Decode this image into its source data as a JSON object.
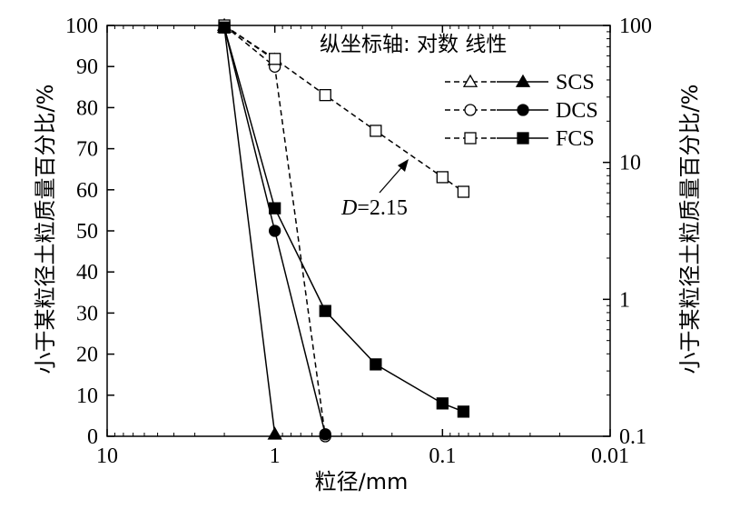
{
  "chart_data": {
    "type": "line",
    "x_axis": {
      "label": "粒径/mm",
      "scale": "log",
      "reversed": true,
      "range": [
        10,
        0.01
      ],
      "ticks": [
        "10",
        "1",
        "0.1",
        "0.01"
      ]
    },
    "y_axis_left": {
      "label": "小于某粒径土粒质量百分比/%",
      "scale": "linear",
      "range": [
        0,
        100
      ],
      "ticks": [
        "0",
        "10",
        "20",
        "30",
        "40",
        "50",
        "60",
        "70",
        "80",
        "90",
        "100"
      ]
    },
    "y_axis_right": {
      "label": "小于某粒径土粒质量百分比/%",
      "scale": "log",
      "range": [
        0.1,
        100
      ],
      "ticks": [
        "0.1",
        "1",
        "10",
        "100"
      ]
    },
    "annotation_top": "纵坐标轴: 对数 线性",
    "fractal_label": {
      "var": "D",
      "value": "=2.15"
    },
    "series": [
      {
        "name": "SCS",
        "marker": "triangle",
        "dashed": {
          "axis": "log",
          "x": [
            2,
            1
          ],
          "y": [
            100,
            56
          ]
        },
        "solid": {
          "axis": "linear",
          "x": [
            2,
            1
          ],
          "y": [
            99.5,
            0.5
          ]
        }
      },
      {
        "name": "DCS",
        "marker": "circle",
        "dashed": {
          "axis": "log",
          "x": [
            2,
            1,
            0.5
          ],
          "y": [
            100,
            50,
            0.1
          ]
        },
        "solid": {
          "axis": "linear",
          "x": [
            2,
            1,
            0.5
          ],
          "y": [
            99.5,
            50,
            0.5
          ]
        }
      },
      {
        "name": "FCS",
        "marker": "square",
        "dashed": {
          "axis": "log",
          "x": [
            2,
            1,
            0.5,
            0.25,
            0.1,
            0.075
          ],
          "y": [
            100,
            57,
            31,
            17,
            7.8,
            6.1
          ]
        },
        "solid": {
          "axis": "linear",
          "x": [
            2,
            1,
            0.5,
            0.25,
            0.1,
            0.075
          ],
          "y": [
            99.5,
            55.5,
            30.5,
            17.5,
            8,
            6
          ]
        }
      }
    ]
  }
}
